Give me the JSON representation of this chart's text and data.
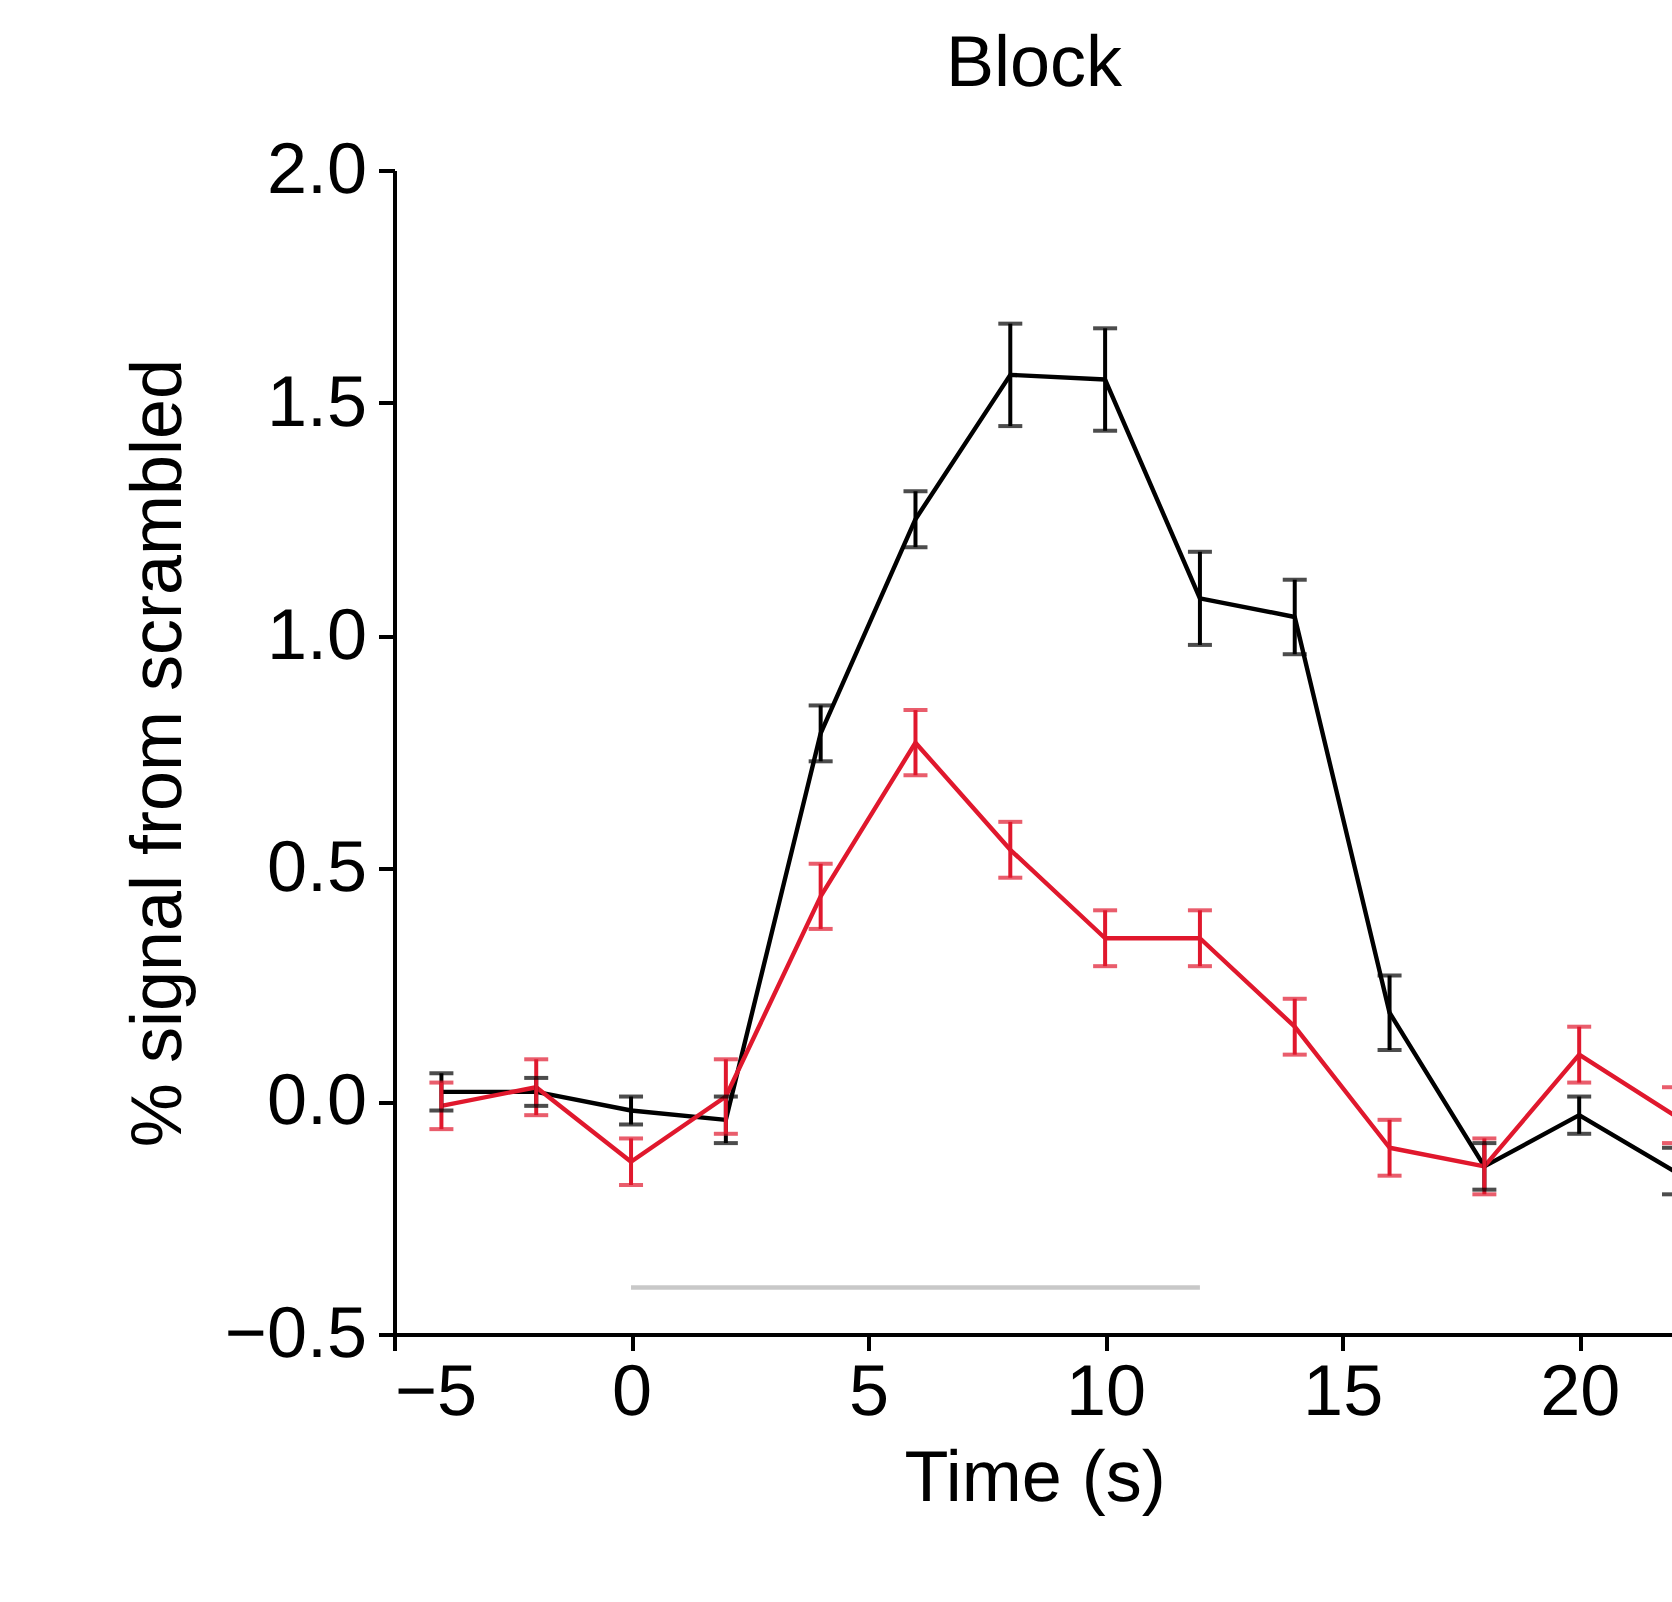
{
  "chart_data": {
    "type": "line",
    "title": "Block",
    "xlabel": "Time (s)",
    "ylabel": "% signal from scrambled",
    "xlim": [
      -5,
      22
    ],
    "xticks": [
      -5,
      0,
      5,
      10,
      15,
      20
    ],
    "ylim": [
      -0.5,
      2.0
    ],
    "yticks": [
      -0.5,
      {
        "value": 0,
        "label": "0.0"
      },
      0.5,
      {
        "value": 1,
        "label": "1.0"
      },
      1.5,
      {
        "value": 2,
        "label": "2.0"
      }
    ],
    "grid": false,
    "legend": false,
    "series": [
      {
        "color": "#c8c8c8",
        "x": [
          0,
          12
        ],
        "values": [
          -0.4,
          -0.4
        ]
      },
      {
        "color": "#000000",
        "x": [
          -4,
          -2,
          0,
          2,
          4,
          6,
          8,
          10,
          12,
          14,
          16,
          18,
          20,
          22
        ],
        "values": [
          0.02,
          0.02,
          -0.02,
          -0.04,
          0.79,
          1.25,
          1.56,
          1.55,
          1.08,
          1.04,
          0.19,
          -0.14,
          -0.03,
          -0.15
        ],
        "errors": [
          0.04,
          0.03,
          0.03,
          0.05,
          0.06,
          0.06,
          0.11,
          0.11,
          0.1,
          0.08,
          0.08,
          0.05,
          0.04,
          0.05
        ]
      },
      {
        "color": "#e0182d",
        "x": [
          -4,
          -2,
          0,
          2,
          4,
          6,
          8,
          10,
          12,
          14,
          16,
          18,
          20,
          22
        ],
        "values": [
          -0.01,
          0.03,
          -0.13,
          0.01,
          0.44,
          0.77,
          0.54,
          0.35,
          0.35,
          0.16,
          -0.1,
          -0.14,
          0.1,
          -0.03
        ],
        "errors": [
          0.05,
          0.06,
          0.05,
          0.08,
          0.07,
          0.07,
          0.06,
          0.06,
          0.06,
          0.06,
          0.06,
          0.06,
          0.06,
          0.06
        ]
      }
    ]
  }
}
